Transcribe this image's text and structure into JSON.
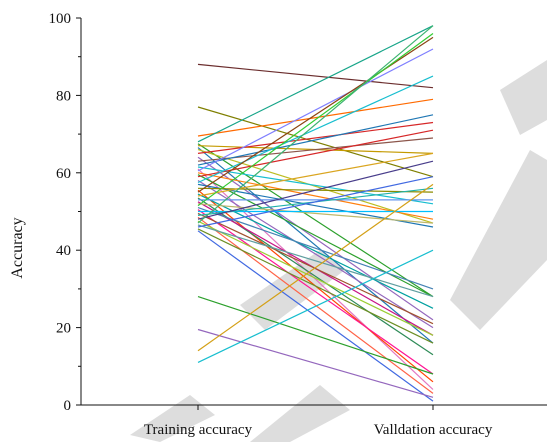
{
  "chart_data": {
    "type": "line",
    "title": "",
    "xlabel": "",
    "ylabel": "Accuracy",
    "categories": [
      "Training accuracy",
      "Valldation accuracy"
    ],
    "ylim": [
      0,
      100
    ],
    "yticks": [
      0,
      20,
      40,
      60,
      80,
      100
    ],
    "grid": false,
    "legend": "none",
    "watermark_color": "#d9d9d9",
    "series": [
      {
        "values": [
          88,
          82
        ],
        "color": "#6b2d2d"
      },
      {
        "values": [
          77,
          59
        ],
        "color": "#7f7f00"
      },
      {
        "values": [
          69.5,
          79
        ],
        "color": "#ff6a00"
      },
      {
        "values": [
          68,
          98
        ],
        "color": "#17a589"
      },
      {
        "values": [
          67.5,
          28
        ],
        "color": "#2ca02c"
      },
      {
        "values": [
          67,
          65
        ],
        "color": "#c49a00"
      },
      {
        "values": [
          66.5,
          16
        ],
        "color": "#1f77b4"
      },
      {
        "values": [
          66,
          47
        ],
        "color": "#bcbd22"
      },
      {
        "values": [
          65,
          73
        ],
        "color": "#d62728"
      },
      {
        "values": [
          64,
          22
        ],
        "color": "#9467bd"
      },
      {
        "values": [
          63,
          69
        ],
        "color": "#8c564b"
      },
      {
        "values": [
          62,
          75
        ],
        "color": "#1f77b4"
      },
      {
        "values": [
          61.5,
          52
        ],
        "color": "#17becf"
      },
      {
        "values": [
          61,
          4
        ],
        "color": "#e377c2"
      },
      {
        "values": [
          60.5,
          92
        ],
        "color": "#7f7fff"
      },
      {
        "values": [
          60,
          48
        ],
        "color": "#ff7f0e"
      },
      {
        "values": [
          59.5,
          28
        ],
        "color": "#2ca02c"
      },
      {
        "values": [
          59,
          71
        ],
        "color": "#d62728"
      },
      {
        "values": [
          58,
          20
        ],
        "color": "#9467bd"
      },
      {
        "values": [
          57.5,
          85
        ],
        "color": "#17becf"
      },
      {
        "values": [
          57,
          46
        ],
        "color": "#1f77b4"
      },
      {
        "values": [
          56,
          55
        ],
        "color": "#8c8c00"
      },
      {
        "values": [
          55.5,
          6
        ],
        "color": "#ff4500"
      },
      {
        "values": [
          55,
          95
        ],
        "color": "#8b4513"
      },
      {
        "values": [
          54.5,
          25
        ],
        "color": "#00a0a0"
      },
      {
        "values": [
          54,
          65
        ],
        "color": "#daa520"
      },
      {
        "values": [
          53.5,
          13
        ],
        "color": "#2e8b57"
      },
      {
        "values": [
          53,
          53
        ],
        "color": "#6495ed"
      },
      {
        "values": [
          52.5,
          18
        ],
        "color": "#c71585"
      },
      {
        "values": [
          52,
          47
        ],
        "color": "#bdb76b"
      },
      {
        "values": [
          51.5,
          96
        ],
        "color": "#32cd32"
      },
      {
        "values": [
          51,
          30
        ],
        "color": "#4682b4"
      },
      {
        "values": [
          50.5,
          8
        ],
        "color": "#ff1493"
      },
      {
        "values": [
          50,
          50
        ],
        "color": "#00bfff"
      },
      {
        "values": [
          49.5,
          21
        ],
        "color": "#a0522d"
      },
      {
        "values": [
          49,
          56
        ],
        "color": "#20b2aa"
      },
      {
        "values": [
          48.5,
          3
        ],
        "color": "#ff6347"
      },
      {
        "values": [
          48,
          63
        ],
        "color": "#483d8b"
      },
      {
        "values": [
          47.5,
          18
        ],
        "color": "#9acd32"
      },
      {
        "values": [
          47,
          98
        ],
        "color": "#3cb371"
      },
      {
        "values": [
          46.5,
          28
        ],
        "color": "#5f9ea0"
      },
      {
        "values": [
          46,
          59
        ],
        "color": "#4169e1"
      },
      {
        "values": [
          45.5,
          16
        ],
        "color": "#6b8e23"
      },
      {
        "values": [
          45,
          1
        ],
        "color": "#4169e1"
      },
      {
        "values": [
          28,
          8
        ],
        "color": "#2ca02c"
      },
      {
        "values": [
          19.5,
          2
        ],
        "color": "#9467bd"
      },
      {
        "values": [
          14,
          57
        ],
        "color": "#d4a017"
      },
      {
        "values": [
          11,
          40
        ],
        "color": "#17becf"
      }
    ]
  }
}
